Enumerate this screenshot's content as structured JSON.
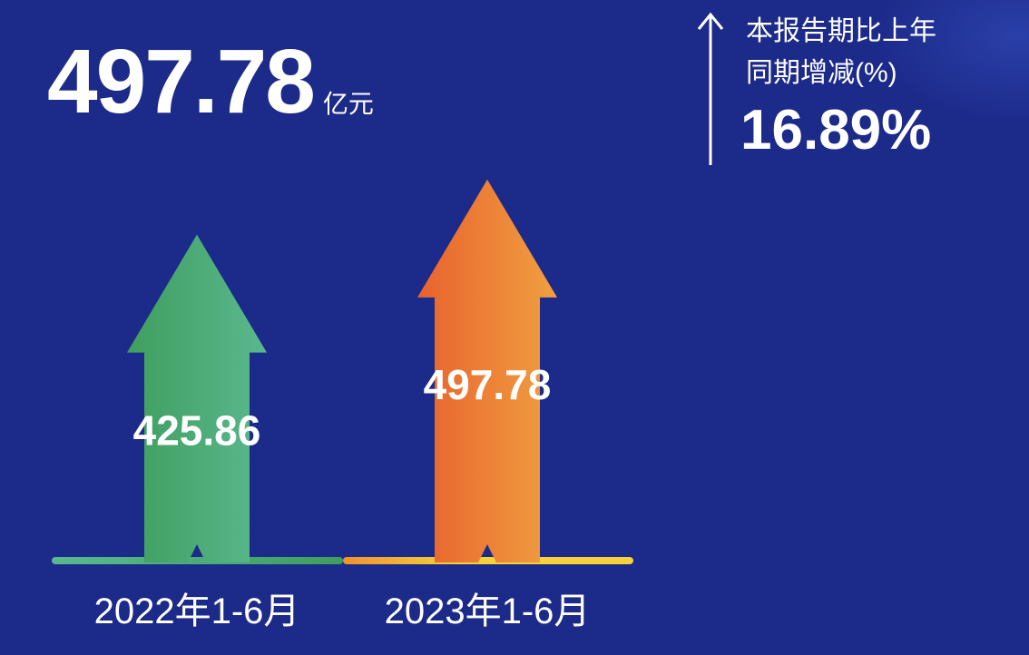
{
  "headline": {
    "value": "497.78",
    "unit": "亿元"
  },
  "change": {
    "label_line1": "本报告期比上年",
    "label_line2": "同期增减(%)",
    "value": "16.89%",
    "direction_icon": "arrow-up-icon"
  },
  "colors": {
    "background": "#1c2a8a",
    "series_2022": [
      "#3f9e5e",
      "#5ab88f"
    ],
    "series_2023": [
      "#e8622e",
      "#f0a040"
    ],
    "baseline_2023": "#f5d23a"
  },
  "chart_data": {
    "type": "bar",
    "categories": [
      "2022年1-6月",
      "2023年1-6月"
    ],
    "values": [
      425.86,
      497.78
    ],
    "value_labels": [
      "425.86",
      "497.78"
    ],
    "unit": "亿元",
    "title": "",
    "xlabel": "",
    "ylabel": "",
    "grid": false
  }
}
